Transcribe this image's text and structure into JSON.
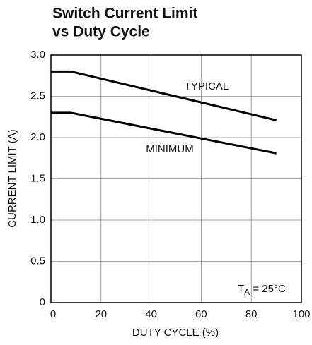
{
  "chart_data": {
    "type": "line",
    "title": [
      "Switch Current Limit",
      "vs Duty Cycle"
    ],
    "xlabel": "DUTY CYCLE (%)",
    "ylabel": "CURRENT LIMIT (A)",
    "series": [
      {
        "name": "TYPICAL",
        "color": "#000000",
        "x": [
          0,
          8,
          90
        ],
        "values": [
          2.8,
          2.8,
          2.21
        ]
      },
      {
        "name": "MINIMUM",
        "color": "#000000",
        "x": [
          0,
          8,
          90
        ],
        "values": [
          2.3,
          2.3,
          1.81
        ]
      }
    ],
    "annotation": [
      "T",
      "A",
      " = 25°C"
    ],
    "xlim": [
      0,
      100
    ],
    "xticks": [
      0,
      20,
      40,
      60,
      80,
      100
    ],
    "ylim": [
      0,
      3
    ],
    "yticks": [
      0,
      0.5,
      {
        "value": 1,
        "label": "1.0"
      },
      1.5,
      {
        "value": 2,
        "label": "2.0"
      },
      2.5,
      {
        "value": 3,
        "label": "3.0"
      }
    ],
    "grid": true
  }
}
